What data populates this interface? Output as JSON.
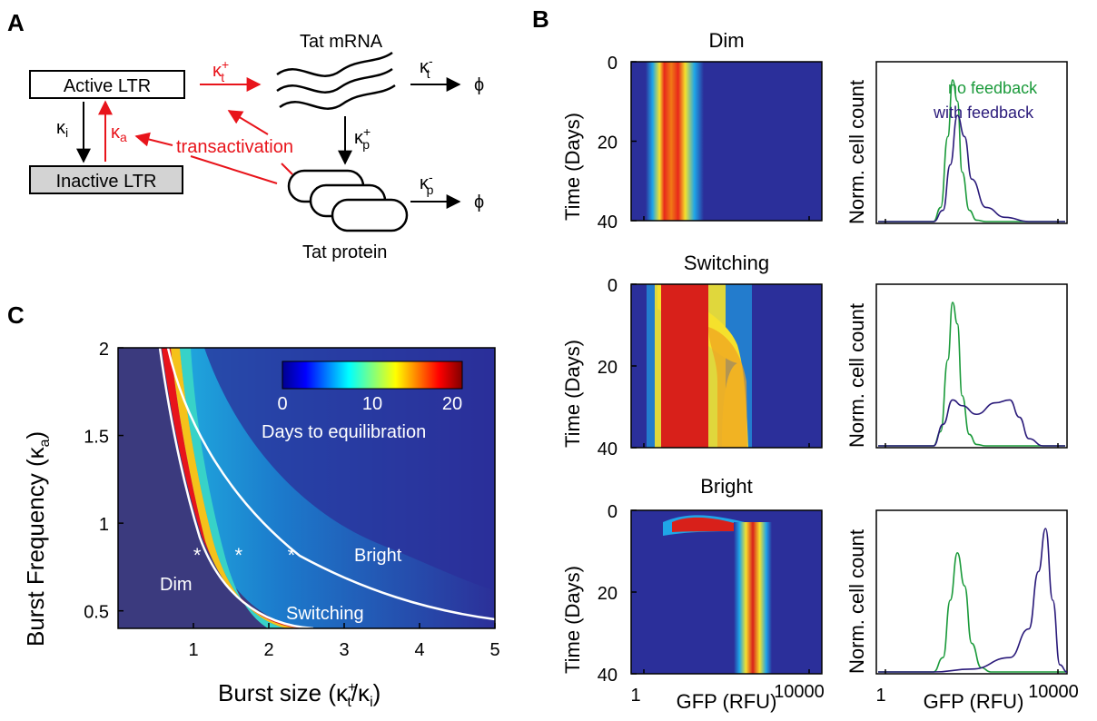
{
  "panels": {
    "A": {
      "letter": "A",
      "active_ltr": "Active LTR",
      "inactive_ltr": "Inactive LTR",
      "tat_mrna": "Tat mRNA",
      "tat_protein": "Tat protein",
      "transactivation": "transactivation",
      "kappa_i": "κi",
      "kappa_a": "κa",
      "kappa_t_plus": "κt+",
      "kappa_t_minus": "κt-",
      "kappa_p_plus": "κp+",
      "kappa_p_minus": "κp-",
      "phi": "ϕ",
      "colors": {
        "red": "#e8141b",
        "box_inactive": "#d3d3d3"
      }
    },
    "B": {
      "letter": "B",
      "titles": [
        "Dim",
        "Switching",
        "Bright"
      ],
      "ylabel": "Time (Days)",
      "yticks": [
        "0",
        "20",
        "40"
      ],
      "xlabel": "GFP (RFU)",
      "xtick_low": "1",
      "xtick_high": "10000",
      "hist_ylabel": "Norm. cell count",
      "legend": [
        "no feedback",
        "with feedback"
      ],
      "colors": {
        "no_feedback": "#1a9a3a",
        "with_feedback": "#2a1a7a"
      }
    },
    "C": {
      "letter": "C",
      "xlabel": "Burst size (κt+/κi)",
      "ylabel": "Burst Frequency (κa)",
      "xticks": [
        "1",
        "2",
        "3",
        "4",
        "5"
      ],
      "yticks": [
        "0.5",
        "1",
        "1.5",
        "2"
      ],
      "colorbar_ticks": [
        "0",
        "10",
        "20"
      ],
      "colorbar_label": "Days to equilibration",
      "regions": [
        "Dim",
        "Switching",
        "Bright"
      ],
      "markers": "*"
    }
  },
  "chart_data": [
    {
      "type": "heatmap",
      "panel": "C",
      "xlabel": "Burst size (κt+/κi)",
      "ylabel": "Burst Frequency (κa)",
      "xlim": [
        0,
        5
      ],
      "ylim": [
        0.4,
        2
      ],
      "colorbar_range": [
        0,
        20
      ],
      "colorbar_label": "Days to equilibration",
      "markers": [
        {
          "x": 1.05,
          "y": 0.85
        },
        {
          "x": 1.6,
          "y": 0.85
        },
        {
          "x": 2.3,
          "y": 0.85
        }
      ],
      "region_labels": [
        "Dim",
        "Switching",
        "Bright"
      ]
    },
    {
      "type": "line",
      "panel": "B-Dim",
      "series": [
        {
          "name": "no feedback",
          "x": [
            1.2,
            1.35,
            1.5,
            1.6,
            1.7,
            1.8,
            1.95,
            2.1,
            2.3
          ],
          "y": [
            0.0,
            0.1,
            0.6,
            1.0,
            0.85,
            0.35,
            0.08,
            0.01,
            0.0
          ]
        },
        {
          "name": "with feedback",
          "x": [
            1.2,
            1.4,
            1.55,
            1.7,
            1.85,
            2.0,
            2.3,
            2.7,
            3.2
          ],
          "y": [
            0.0,
            0.08,
            0.4,
            0.75,
            0.6,
            0.3,
            0.1,
            0.03,
            0.0
          ]
        }
      ]
    },
    {
      "type": "line",
      "panel": "B-Switching",
      "series": [
        {
          "name": "no feedback",
          "x": [
            1.2,
            1.35,
            1.5,
            1.6,
            1.7,
            1.8,
            1.95,
            2.1,
            2.3
          ],
          "y": [
            0.0,
            0.1,
            0.6,
            1.0,
            0.85,
            0.35,
            0.08,
            0.01,
            0.0
          ]
        },
        {
          "name": "with feedback",
          "x": [
            1.2,
            1.4,
            1.6,
            1.8,
            2.1,
            2.5,
            2.8,
            3.0,
            3.2,
            3.5
          ],
          "y": [
            0.0,
            0.15,
            0.32,
            0.28,
            0.22,
            0.3,
            0.32,
            0.2,
            0.05,
            0.0
          ]
        }
      ]
    },
    {
      "type": "line",
      "panel": "B-Bright",
      "series": [
        {
          "name": "no feedback",
          "x": [
            1.2,
            1.4,
            1.55,
            1.7,
            1.85,
            2.0,
            2.2,
            2.4
          ],
          "y": [
            0.0,
            0.1,
            0.5,
            0.83,
            0.6,
            0.2,
            0.03,
            0.0
          ]
        },
        {
          "name": "with feedback",
          "x": [
            1.2,
            2.0,
            2.8,
            3.2,
            3.4,
            3.55,
            3.7,
            3.85,
            4.0
          ],
          "y": [
            0.0,
            0.02,
            0.1,
            0.3,
            0.7,
            1.0,
            0.5,
            0.05,
            0.0
          ]
        }
      ]
    }
  ]
}
